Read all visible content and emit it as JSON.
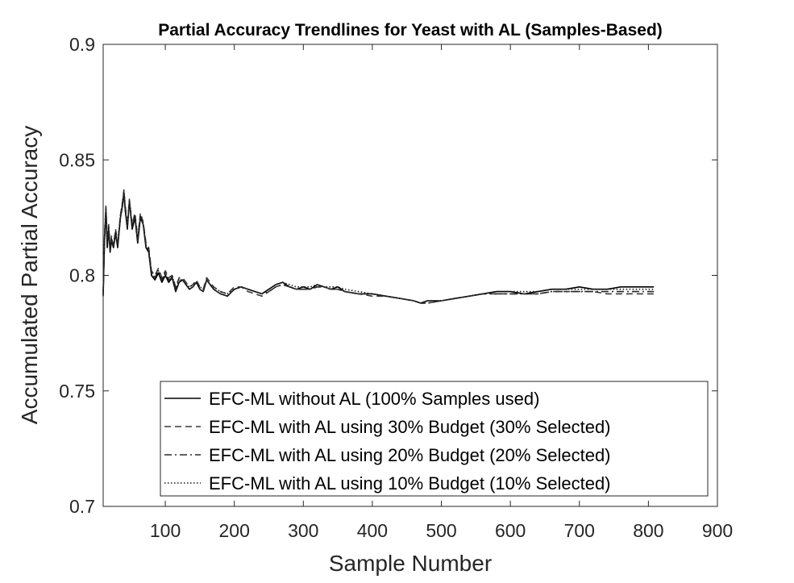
{
  "chart_data": {
    "type": "line",
    "title": "Partial Accuracy Trendlines for Yeast with AL (Samples-Based)",
    "xlabel": "Sample Number",
    "ylabel": "Accumulated Partial Accuracy",
    "xlim": [
      10,
      900
    ],
    "ylim": [
      0.7,
      0.9
    ],
    "xticks": [
      "100",
      "200",
      "300",
      "400",
      "500",
      "600",
      "700",
      "800",
      "900"
    ],
    "yticks": [
      "0.7",
      "0.75",
      "0.8",
      "0.85",
      "0.9"
    ],
    "legend_position": "bottom-right",
    "grid": false,
    "series": [
      {
        "name": "EFC-ML without AL (100% Samples used)",
        "style": "solid",
        "color": "#000000",
        "x": [
          10,
          12,
          14,
          16,
          18,
          20,
          22,
          25,
          28,
          31,
          35,
          38,
          40,
          42,
          45,
          48,
          52,
          56,
          60,
          64,
          68,
          72,
          76,
          80,
          85,
          90,
          95,
          100,
          105,
          110,
          115,
          120,
          125,
          130,
          135,
          140,
          145,
          150,
          155,
          160,
          165,
          170,
          180,
          190,
          200,
          210,
          220,
          230,
          240,
          250,
          260,
          270,
          280,
          290,
          300,
          310,
          320,
          330,
          340,
          350,
          360,
          380,
          400,
          420,
          440,
          460,
          470,
          480,
          500,
          520,
          540,
          560,
          580,
          600,
          620,
          640,
          660,
          680,
          700,
          720,
          740,
          760,
          780,
          800,
          808
        ],
        "values": [
          0.791,
          0.815,
          0.828,
          0.812,
          0.82,
          0.81,
          0.815,
          0.812,
          0.818,
          0.812,
          0.825,
          0.83,
          0.836,
          0.828,
          0.82,
          0.832,
          0.82,
          0.825,
          0.814,
          0.825,
          0.822,
          0.812,
          0.81,
          0.8,
          0.798,
          0.801,
          0.797,
          0.8,
          0.797,
          0.799,
          0.793,
          0.797,
          0.798,
          0.796,
          0.794,
          0.795,
          0.797,
          0.794,
          0.793,
          0.798,
          0.796,
          0.794,
          0.792,
          0.791,
          0.794,
          0.795,
          0.794,
          0.793,
          0.792,
          0.794,
          0.796,
          0.797,
          0.795,
          0.794,
          0.795,
          0.794,
          0.796,
          0.795,
          0.794,
          0.795,
          0.793,
          0.792,
          0.792,
          0.791,
          0.79,
          0.789,
          0.788,
          0.789,
          0.789,
          0.79,
          0.791,
          0.792,
          0.793,
          0.793,
          0.792,
          0.793,
          0.794,
          0.794,
          0.795,
          0.794,
          0.794,
          0.795,
          0.795,
          0.795,
          0.795
        ]
      },
      {
        "name": "EFC-ML with AL using 30% Budget (30% Selected)",
        "style": "dashed",
        "color": "#3a3a3a",
        "x": [
          10,
          12,
          14,
          16,
          18,
          20,
          22,
          25,
          28,
          31,
          35,
          38,
          40,
          42,
          45,
          48,
          52,
          56,
          60,
          64,
          68,
          72,
          76,
          80,
          85,
          90,
          95,
          100,
          105,
          110,
          115,
          120,
          125,
          130,
          135,
          140,
          145,
          150,
          155,
          160,
          165,
          170,
          180,
          190,
          200,
          210,
          220,
          230,
          240,
          250,
          260,
          270,
          280,
          290,
          300,
          310,
          320,
          330,
          340,
          350,
          360,
          380,
          400,
          420,
          440,
          460,
          470,
          480,
          500,
          520,
          540,
          560,
          580,
          600,
          620,
          640,
          660,
          680,
          700,
          720,
          740,
          760,
          780,
          800,
          808
        ],
        "values": [
          0.792,
          0.818,
          0.83,
          0.815,
          0.822,
          0.812,
          0.817,
          0.813,
          0.82,
          0.814,
          0.826,
          0.832,
          0.837,
          0.83,
          0.822,
          0.833,
          0.822,
          0.827,
          0.816,
          0.827,
          0.823,
          0.814,
          0.812,
          0.802,
          0.8,
          0.803,
          0.799,
          0.802,
          0.799,
          0.8,
          0.795,
          0.799,
          0.799,
          0.797,
          0.795,
          0.796,
          0.798,
          0.795,
          0.794,
          0.799,
          0.797,
          0.795,
          0.793,
          0.792,
          0.795,
          0.795,
          0.793,
          0.792,
          0.791,
          0.793,
          0.795,
          0.796,
          0.795,
          0.794,
          0.794,
          0.794,
          0.795,
          0.795,
          0.794,
          0.794,
          0.793,
          0.792,
          0.791,
          0.791,
          0.79,
          0.789,
          0.788,
          0.788,
          0.789,
          0.79,
          0.791,
          0.792,
          0.792,
          0.792,
          0.792,
          0.792,
          0.793,
          0.793,
          0.793,
          0.793,
          0.792,
          0.792,
          0.792,
          0.792,
          0.792
        ]
      },
      {
        "name": "EFC-ML with AL using 20% Budget (20% Selected)",
        "style": "dashdot",
        "color": "#2a2a2a",
        "x": [
          10,
          12,
          14,
          16,
          18,
          20,
          22,
          25,
          28,
          31,
          35,
          38,
          40,
          42,
          45,
          48,
          52,
          56,
          60,
          64,
          68,
          72,
          76,
          80,
          85,
          90,
          95,
          100,
          105,
          110,
          115,
          120,
          125,
          130,
          135,
          140,
          145,
          150,
          155,
          160,
          165,
          170,
          180,
          190,
          200,
          210,
          220,
          230,
          240,
          250,
          260,
          270,
          280,
          290,
          300,
          310,
          320,
          330,
          340,
          350,
          360,
          380,
          400,
          420,
          440,
          460,
          470,
          480,
          500,
          520,
          540,
          560,
          580,
          600,
          620,
          640,
          660,
          680,
          700,
          720,
          740,
          760,
          780,
          800,
          808
        ],
        "values": [
          0.793,
          0.816,
          0.829,
          0.814,
          0.821,
          0.811,
          0.816,
          0.812,
          0.819,
          0.813,
          0.825,
          0.831,
          0.836,
          0.829,
          0.821,
          0.832,
          0.821,
          0.826,
          0.815,
          0.826,
          0.822,
          0.813,
          0.811,
          0.801,
          0.799,
          0.802,
          0.798,
          0.801,
          0.798,
          0.799,
          0.794,
          0.798,
          0.798,
          0.796,
          0.794,
          0.795,
          0.797,
          0.794,
          0.793,
          0.798,
          0.796,
          0.794,
          0.792,
          0.791,
          0.794,
          0.795,
          0.794,
          0.793,
          0.792,
          0.793,
          0.795,
          0.796,
          0.795,
          0.794,
          0.794,
          0.794,
          0.795,
          0.795,
          0.794,
          0.794,
          0.793,
          0.792,
          0.792,
          0.791,
          0.79,
          0.789,
          0.788,
          0.788,
          0.789,
          0.79,
          0.791,
          0.792,
          0.792,
          0.792,
          0.792,
          0.792,
          0.793,
          0.793,
          0.793,
          0.793,
          0.793,
          0.793,
          0.793,
          0.793,
          0.793
        ]
      },
      {
        "name": "EFC-ML with AL using 10% Budget (10% Selected)",
        "style": "dotted",
        "color": "#1a1a1a",
        "x": [
          10,
          12,
          14,
          16,
          18,
          20,
          22,
          25,
          28,
          31,
          35,
          38,
          40,
          42,
          45,
          48,
          52,
          56,
          60,
          64,
          68,
          72,
          76,
          80,
          85,
          90,
          95,
          100,
          105,
          110,
          115,
          120,
          125,
          130,
          135,
          140,
          145,
          150,
          155,
          160,
          165,
          170,
          180,
          190,
          200,
          210,
          220,
          230,
          240,
          250,
          260,
          270,
          280,
          290,
          300,
          310,
          320,
          330,
          340,
          350,
          360,
          380,
          400,
          420,
          440,
          460,
          470,
          480,
          500,
          520,
          540,
          560,
          580,
          600,
          620,
          640,
          660,
          680,
          700,
          720,
          740,
          760,
          780,
          800,
          808
        ],
        "values": [
          0.792,
          0.817,
          0.829,
          0.813,
          0.821,
          0.811,
          0.816,
          0.812,
          0.819,
          0.813,
          0.826,
          0.831,
          0.836,
          0.829,
          0.821,
          0.832,
          0.821,
          0.826,
          0.815,
          0.826,
          0.822,
          0.813,
          0.811,
          0.801,
          0.799,
          0.802,
          0.798,
          0.801,
          0.798,
          0.8,
          0.794,
          0.798,
          0.798,
          0.796,
          0.795,
          0.796,
          0.797,
          0.795,
          0.794,
          0.798,
          0.796,
          0.795,
          0.793,
          0.792,
          0.794,
          0.795,
          0.794,
          0.793,
          0.792,
          0.794,
          0.796,
          0.797,
          0.796,
          0.795,
          0.795,
          0.795,
          0.796,
          0.795,
          0.795,
          0.795,
          0.794,
          0.793,
          0.792,
          0.791,
          0.79,
          0.789,
          0.788,
          0.789,
          0.789,
          0.79,
          0.791,
          0.792,
          0.793,
          0.793,
          0.793,
          0.793,
          0.794,
          0.794,
          0.794,
          0.794,
          0.794,
          0.794,
          0.794,
          0.794,
          0.794
        ]
      }
    ]
  }
}
